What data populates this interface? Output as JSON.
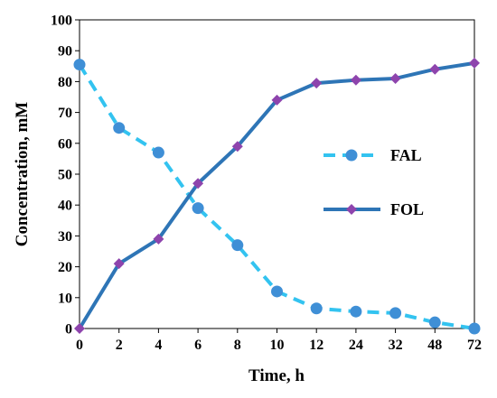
{
  "chart_data": {
    "type": "line",
    "title": "",
    "xlabel": "Time, h",
    "ylabel": "Concentration, mM",
    "categories": [
      "0",
      "2",
      "4",
      "6",
      "8",
      "10",
      "12",
      "24",
      "32",
      "48",
      "72"
    ],
    "ylim": [
      0,
      100
    ],
    "yticks": [
      "0",
      "10",
      "20",
      "30",
      "40",
      "50",
      "60",
      "70",
      "80",
      "90",
      "100"
    ],
    "grid": false,
    "legend_position": "right",
    "series": [
      {
        "name": "FAL",
        "values": [
          85.5,
          65,
          57,
          39,
          27,
          12,
          6.5,
          5.5,
          5,
          2,
          0
        ],
        "color": "#33C3F0",
        "line_style": "dashed",
        "marker": "circle",
        "marker_color": "#3F8FD6"
      },
      {
        "name": "FOL",
        "values": [
          0,
          21,
          29,
          47,
          59,
          74,
          79.5,
          80.5,
          81,
          84,
          86
        ],
        "color": "#2E75B6",
        "line_style": "solid",
        "marker": "diamond",
        "marker_color": "#8E44AD"
      }
    ]
  }
}
